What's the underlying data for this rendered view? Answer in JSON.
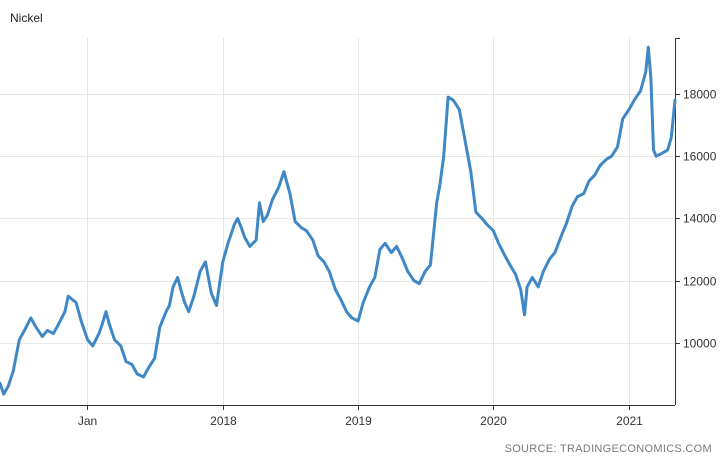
{
  "chart_data": {
    "type": "line",
    "title": "Nickel",
    "source": "SOURCE: TRADINGECONOMICS.COM",
    "xlabel": "",
    "ylabel": "",
    "x_range": [
      "2016-05-10",
      "2021-05-05"
    ],
    "ylim": [
      8000,
      19800
    ],
    "y_ticks": [
      10000,
      12000,
      14000,
      16000,
      18000
    ],
    "y_tick_labels": [
      "10000",
      "12000",
      "14000",
      "16000",
      "18000"
    ],
    "x_ticks": [
      "2017-01-01",
      "2018-01-01",
      "2019-01-01",
      "2020-01-01",
      "2021-01-01"
    ],
    "x_tick_labels": [
      "Jan",
      "2018",
      "2019",
      "2020",
      "2021"
    ],
    "grid": true,
    "y_axis_position": "right",
    "line_color": "#3f88c5",
    "series": [
      {
        "x": [
          "2016-05-10",
          "2016-05-20",
          "2016-06-01",
          "2016-06-15",
          "2016-07-01",
          "2016-07-15",
          "2016-08-01",
          "2016-08-15",
          "2016-09-01",
          "2016-09-15",
          "2016-10-01",
          "2016-10-15",
          "2016-11-01",
          "2016-11-10",
          "2016-11-20",
          "2016-12-01",
          "2016-12-15",
          "2017-01-01",
          "2017-01-15",
          "2017-02-01",
          "2017-02-10",
          "2017-02-20",
          "2017-03-01",
          "2017-03-15",
          "2017-04-01",
          "2017-04-15",
          "2017-05-01",
          "2017-05-15",
          "2017-06-01",
          "2017-06-15",
          "2017-07-01",
          "2017-07-15",
          "2017-08-01",
          "2017-08-10",
          "2017-08-20",
          "2017-09-01",
          "2017-09-10",
          "2017-09-20",
          "2017-10-01",
          "2017-10-15",
          "2017-11-01",
          "2017-11-15",
          "2017-12-01",
          "2017-12-15",
          "2018-01-01",
          "2018-01-15",
          "2018-02-01",
          "2018-02-10",
          "2018-02-20",
          "2018-03-01",
          "2018-03-15",
          "2018-04-01",
          "2018-04-10",
          "2018-04-20",
          "2018-05-01",
          "2018-05-15",
          "2018-06-01",
          "2018-06-15",
          "2018-07-01",
          "2018-07-15",
          "2018-08-01",
          "2018-08-15",
          "2018-09-01",
          "2018-09-15",
          "2018-10-01",
          "2018-10-15",
          "2018-11-01",
          "2018-11-15",
          "2018-12-01",
          "2018-12-15",
          "2019-01-01",
          "2019-01-15",
          "2019-02-01",
          "2019-02-15",
          "2019-03-01",
          "2019-03-15",
          "2019-04-01",
          "2019-04-15",
          "2019-05-01",
          "2019-05-15",
          "2019-06-01",
          "2019-06-15",
          "2019-07-01",
          "2019-07-15",
          "2019-08-01",
          "2019-08-10",
          "2019-08-20",
          "2019-09-01",
          "2019-09-15",
          "2019-10-01",
          "2019-10-15",
          "2019-11-01",
          "2019-11-15",
          "2019-12-01",
          "2019-12-15",
          "2020-01-01",
          "2020-01-15",
          "2020-02-01",
          "2020-02-15",
          "2020-03-01",
          "2020-03-15",
          "2020-03-25",
          "2020-04-01",
          "2020-04-15",
          "2020-05-01",
          "2020-05-15",
          "2020-06-01",
          "2020-06-15",
          "2020-07-01",
          "2020-07-15",
          "2020-08-01",
          "2020-08-15",
          "2020-09-01",
          "2020-09-15",
          "2020-10-01",
          "2020-10-15",
          "2020-11-01",
          "2020-11-15",
          "2020-12-01",
          "2020-12-15",
          "2021-01-01",
          "2021-01-15",
          "2021-02-01",
          "2021-02-15",
          "2021-02-22",
          "2021-03-01",
          "2021-03-08",
          "2021-03-15",
          "2021-04-01",
          "2021-04-15",
          "2021-04-25",
          "2021-05-05"
        ],
        "values": [
          8700,
          8350,
          8600,
          9100,
          10100,
          10400,
          10800,
          10500,
          10200,
          10400,
          10300,
          10600,
          11000,
          11500,
          11400,
          11300,
          10700,
          10100,
          9900,
          10300,
          10600,
          11000,
          10600,
          10100,
          9900,
          9400,
          9300,
          9000,
          8900,
          9200,
          9500,
          10500,
          11000,
          11200,
          11800,
          12100,
          11700,
          11300,
          11000,
          11500,
          12300,
          12600,
          11600,
          11200,
          12600,
          13200,
          13800,
          14000,
          13700,
          13400,
          13100,
          13300,
          14500,
          13900,
          14100,
          14600,
          15000,
          15500,
          14800,
          13900,
          13700,
          13600,
          13300,
          12800,
          12600,
          12300,
          11700,
          11400,
          11000,
          10800,
          10700,
          11300,
          11800,
          12100,
          13000,
          13200,
          12900,
          13100,
          12700,
          12300,
          12000,
          11900,
          12300,
          12500,
          14500,
          15100,
          16000,
          17900,
          17800,
          17500,
          16600,
          15500,
          14200,
          14000,
          13800,
          13600,
          13200,
          12800,
          12500,
          12200,
          11700,
          10900,
          11800,
          12100,
          11800,
          12300,
          12700,
          12900,
          13400,
          13800,
          14400,
          14700,
          14800,
          15200,
          15400,
          15700,
          15900,
          16000,
          16300,
          17200,
          17500,
          17800,
          18100,
          18700,
          19500,
          18500,
          16200,
          16000,
          16100,
          16200,
          16600,
          17800
        ]
      }
    ]
  }
}
